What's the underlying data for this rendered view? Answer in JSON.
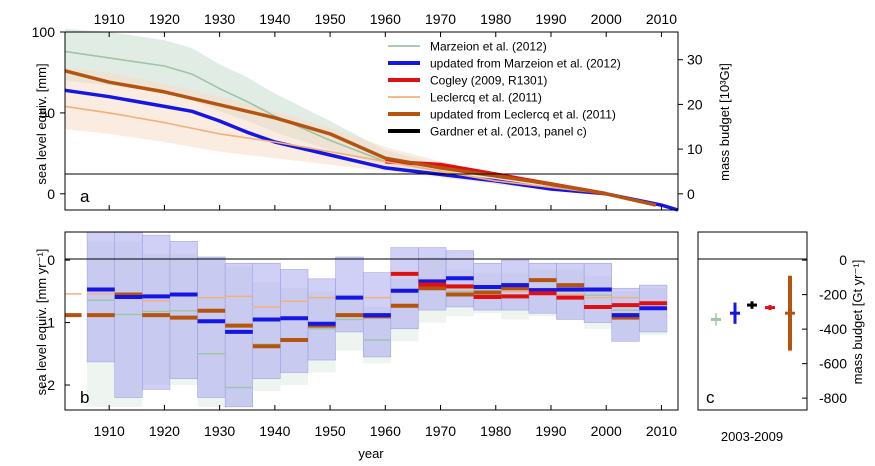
{
  "figure": {
    "xlabel": "year",
    "bottom_label_c": "2003-2009",
    "top_axis_ticks": [
      "1910",
      "1920",
      "1930",
      "1940",
      "1950",
      "1960",
      "1970",
      "1980",
      "1990",
      "2000",
      "2010"
    ]
  },
  "chart_data": [
    {
      "panel": "a",
      "type": "line",
      "xlabel": "year",
      "ylabel": "sea level equiv. [mm]",
      "y2label": "mass budget [10³Gt]",
      "xlim": [
        1902,
        2013
      ],
      "ylim": [
        -10,
        100
      ],
      "x_ticks": [
        1910,
        1920,
        1930,
        1940,
        1950,
        1960,
        1970,
        1980,
        1990,
        2000,
        2010
      ],
      "y_ticks": [
        0,
        50,
        100
      ],
      "y2_ticks": [
        0,
        10,
        20,
        30
      ],
      "legend_position": "top-right",
      "series": [
        {
          "name": "Marzeion et al. (2012)",
          "color": "#9fc5a8",
          "band_color": "#c9dccd",
          "x": [
            1902,
            1910,
            1920,
            1925,
            1930,
            1935,
            1940,
            1950,
            1960,
            1970,
            1980,
            1990,
            2000
          ],
          "y": [
            88,
            84,
            79,
            74,
            65,
            57,
            48,
            33,
            20,
            14,
            8,
            3,
            0
          ],
          "band_lo": [
            70,
            67,
            63,
            58,
            51,
            45,
            38,
            27,
            17,
            12,
            6,
            2,
            0
          ],
          "band_hi": [
            102,
            100,
            95,
            90,
            80,
            72,
            62,
            45,
            27,
            18,
            10,
            4,
            0
          ]
        },
        {
          "name": "updated from Marzeion et al. (2012)",
          "color": "#1515e6",
          "x": [
            1902,
            1910,
            1920,
            1925,
            1930,
            1935,
            1940,
            1950,
            1960,
            1970,
            1980,
            1990,
            2000,
            2010,
            2013
          ],
          "y": [
            64,
            60,
            54,
            51,
            45,
            38,
            32,
            24,
            16,
            12,
            8,
            3,
            0,
            -7,
            -10
          ]
        },
        {
          "name": "Cogley (2009, R1301)",
          "color": "#e01010",
          "x": [
            1960,
            1965,
            1970,
            1975,
            1980,
            1985,
            1990,
            1995,
            2000
          ],
          "y": [
            20,
            19,
            18,
            15,
            12,
            9,
            6,
            3,
            0
          ]
        },
        {
          "name": "Leclercq et al. (2011)",
          "color": "#f5b07a",
          "band_color": "#f7dcc8",
          "x": [
            1902,
            1910,
            1920,
            1930,
            1940,
            1950,
            1960,
            1970,
            1980,
            1990,
            2000
          ],
          "y": [
            54,
            50,
            44,
            37,
            32,
            26,
            20,
            14,
            8,
            4,
            0
          ],
          "band_lo": [
            40,
            37,
            32,
            26,
            22,
            18,
            14,
            10,
            6,
            3,
            0
          ],
          "band_hi": [
            78,
            75,
            68,
            60,
            51,
            41,
            29,
            20,
            12,
            6,
            0
          ]
        },
        {
          "name": "updated from Leclercq et al. (2011)",
          "color": "#b5540e",
          "x": [
            1902,
            1910,
            1920,
            1930,
            1940,
            1950,
            1960,
            1970,
            1980,
            1990,
            2000,
            2009
          ],
          "y": [
            76,
            69,
            63,
            55,
            47,
            37,
            22,
            16,
            11,
            6,
            0,
            -7
          ]
        },
        {
          "name": "Gardner et al. (2013, panel c)",
          "color": "#000000",
          "x": [],
          "y": []
        }
      ]
    },
    {
      "panel": "b",
      "type": "bar",
      "xlabel": "year",
      "ylabel": "sea level equiv. [mm yr⁻¹]",
      "xlim": [
        1902,
        2013
      ],
      "ylim": [
        -2.4,
        0.45
      ],
      "y_ticks": [
        0,
        -1,
        -2
      ],
      "x_ticks": [
        1910,
        1920,
        1930,
        1940,
        1950,
        1960,
        1970,
        1980,
        1990,
        2000,
        2010
      ],
      "period_starts": [
        1900,
        1906,
        1911,
        1916,
        1921,
        1926,
        1931,
        1936,
        1941,
        1946,
        1951,
        1956,
        1961,
        1966,
        1971,
        1976,
        1981,
        1986,
        1991,
        1996,
        2001,
        2006
      ],
      "series": [
        {
          "name": "Marzeion et al. (2012)",
          "color": "#9fc5a8",
          "values": [
            null,
            -0.64,
            -0.87,
            -0.82,
            -0.81,
            -1.5,
            -2.04,
            -1.35,
            -1.27,
            -1.1,
            -0.95,
            -1.28,
            -0.75,
            -0.47,
            -0.5,
            -0.48,
            -0.56,
            -0.46,
            -0.5,
            -0.56,
            -0.8,
            -0.78
          ],
          "lo": [
            null,
            -2.35,
            -2.35,
            -2.0,
            -2.0,
            -2.35,
            -2.35,
            -2.1,
            -2.0,
            -1.8,
            -1.45,
            -1.65,
            -1.3,
            -1.0,
            -0.9,
            -0.85,
            -0.95,
            -0.9,
            -0.95,
            -1.1,
            -1.3,
            -1.2
          ],
          "hi": [
            null,
            0.3,
            0.3,
            0.1,
            0.1,
            0.05,
            -0.1,
            -0.35,
            -0.45,
            -0.5,
            -0.55,
            -0.75,
            -0.3,
            0.05,
            -0.15,
            -0.2,
            -0.2,
            -0.15,
            -0.15,
            -0.25,
            -0.5,
            -0.45
          ]
        },
        {
          "name": "updated from Marzeion et al. (2012)",
          "color": "#1515e6",
          "band_color": "#aaaaee",
          "values": [
            null,
            -0.47,
            -0.59,
            -0.58,
            -0.55,
            -0.98,
            -1.15,
            -0.95,
            -0.93,
            -1.02,
            -0.6,
            -0.88,
            -0.49,
            -0.34,
            -0.29,
            -0.43,
            -0.4,
            -0.48,
            -0.47,
            -0.47,
            -0.88,
            -0.77
          ],
          "lo": [
            null,
            -1.63,
            -2.2,
            -2.07,
            -1.9,
            -2.2,
            -2.35,
            -1.9,
            -1.8,
            -1.6,
            -1.15,
            -1.55,
            -1.1,
            -0.8,
            -0.75,
            -0.8,
            -0.8,
            -0.85,
            -0.95,
            -1.0,
            -1.3,
            -1.15
          ],
          "hi": [
            null,
            0.45,
            0.45,
            0.4,
            0.3,
            0.05,
            -0.05,
            -0.05,
            -0.15,
            -0.3,
            0.05,
            -0.2,
            0.2,
            0.2,
            0.15,
            -0.05,
            0.0,
            -0.05,
            -0.05,
            -0.05,
            -0.45,
            -0.4
          ]
        },
        {
          "name": "Cogley (2009, R1301)",
          "color": "#e01010",
          "values": [
            null,
            null,
            null,
            null,
            null,
            null,
            null,
            null,
            null,
            null,
            null,
            null,
            -0.22,
            -0.39,
            -0.42,
            -0.59,
            -0.58,
            -0.53,
            -0.6,
            -0.75,
            -0.72,
            -0.69
          ]
        },
        {
          "name": "Leclercq et al. (2011)",
          "color": "#f5b07a",
          "values": [
            -0.54,
            -0.54,
            -0.61,
            -0.65,
            -0.54,
            -0.6,
            -0.58,
            -0.75,
            -0.66,
            -0.6,
            -0.6,
            -0.6,
            -0.5,
            -0.45,
            -0.45,
            -0.5,
            -0.5,
            -0.47,
            -0.55,
            -0.6,
            -0.6,
            null
          ]
        },
        {
          "name": "updated from Leclercq et al. (2011)",
          "color": "#b5540e",
          "values": [
            -0.88,
            -0.88,
            -0.55,
            -0.88,
            -0.92,
            -0.81,
            -1.05,
            -1.38,
            -1.28,
            -1.05,
            -0.88,
            -0.9,
            -0.73,
            -0.45,
            -0.55,
            -0.52,
            -0.45,
            -0.32,
            -0.4,
            -0.75,
            -0.92,
            null
          ]
        }
      ]
    },
    {
      "panel": "c",
      "type": "scatter",
      "xlabel": "2003-2009",
      "y2label": "mass budget [Gt yr⁻¹]",
      "ylim": [
        -2.4,
        0.45
      ],
      "y2_ticks": [
        0,
        -200,
        -400,
        -600,
        -800
      ],
      "y2_tick_labels": [
        "0",
        "-200",
        "-400",
        "-600",
        "-800"
      ],
      "points": [
        {
          "name": "Marzeion et al. (2012)",
          "color": "#9fc5a8",
          "value": -0.95,
          "lo": -1.05,
          "hi": -0.85
        },
        {
          "name": "updated from Marzeion et al. (2012)",
          "color": "#1515e6",
          "value": -0.85,
          "lo": -1.02,
          "hi": -0.68
        },
        {
          "name": "Gardner et al. (2013, panel c)",
          "color": "#000000",
          "value": -0.72,
          "lo": -0.78,
          "hi": -0.66
        },
        {
          "name": "Cogley (2009, R1301)",
          "color": "#e01010",
          "value": -0.76,
          "lo": -0.8,
          "hi": -0.72
        },
        {
          "name": "updated from Leclercq et al. (2011)",
          "color": "#b5540e",
          "value": -0.85,
          "lo": -1.45,
          "hi": -0.25
        }
      ]
    }
  ]
}
